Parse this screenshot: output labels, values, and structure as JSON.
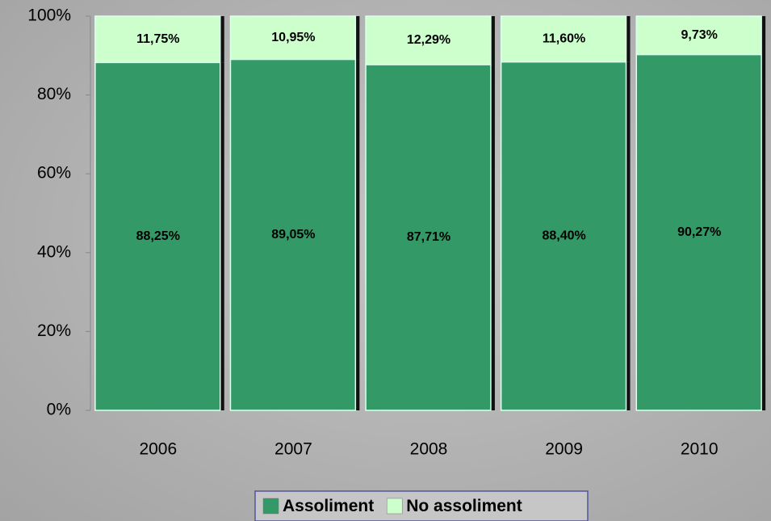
{
  "chart_data": {
    "type": "stacked_bar",
    "categories": [
      "2006",
      "2007",
      "2008",
      "2009",
      "2010"
    ],
    "series": [
      {
        "name": "Assoliment",
        "color": "#339966",
        "values": [
          88.25,
          89.05,
          87.71,
          88.4,
          90.27
        ],
        "value_labels": [
          "88,25%",
          "89,05%",
          "87,71%",
          "88,40%",
          "90,27%"
        ]
      },
      {
        "name": "No assoliment",
        "color": "#ccffcc",
        "values": [
          11.75,
          10.95,
          12.29,
          11.6,
          9.73
        ],
        "value_labels": [
          "11,75%",
          "10,95%",
          "12,29%",
          "11,60%",
          "9,73%"
        ]
      }
    ],
    "ylim": [
      0,
      100
    ],
    "yticks": [
      {
        "value": 0,
        "label": "0%"
      },
      {
        "value": 20,
        "label": "20%"
      },
      {
        "value": 40,
        "label": "40%"
      },
      {
        "value": 60,
        "label": "60%"
      },
      {
        "value": 80,
        "label": "80%"
      },
      {
        "value": 100,
        "label": "100%"
      }
    ],
    "legend": "bottom"
  }
}
